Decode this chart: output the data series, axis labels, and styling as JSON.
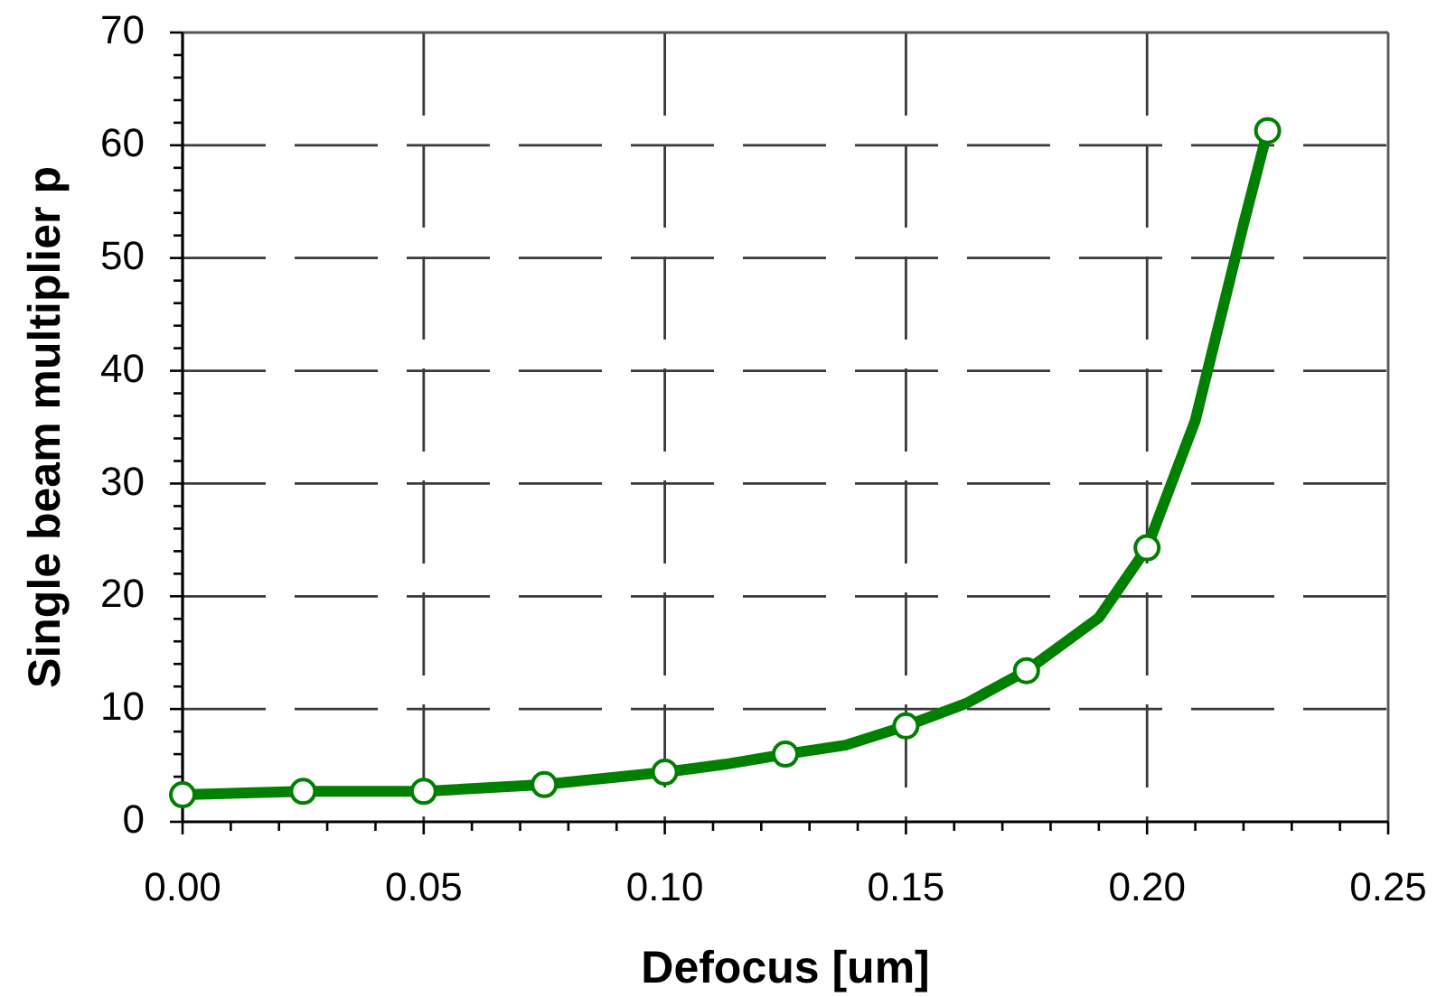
{
  "chart_data": {
    "type": "line",
    "xlabel": "Defocus [um]",
    "ylabel": "Single beam multiplier p",
    "xlim": [
      0,
      0.25
    ],
    "xticks": [
      {
        "value": 0,
        "label": "0.00"
      },
      {
        "value": 0.01,
        "label": null
      },
      {
        "value": 0.02,
        "label": null
      },
      {
        "value": 0.03,
        "label": null
      },
      {
        "value": 0.04,
        "label": null
      },
      {
        "value": 0.05,
        "label": "0.05"
      },
      {
        "value": 0.06,
        "label": null
      },
      {
        "value": 0.07,
        "label": null
      },
      {
        "value": 0.08,
        "label": null
      },
      {
        "value": 0.09,
        "label": null
      },
      {
        "value": 0.1,
        "label": "0.10"
      },
      {
        "value": 0.11,
        "label": null
      },
      {
        "value": 0.12,
        "label": null
      },
      {
        "value": 0.13,
        "label": null
      },
      {
        "value": 0.14,
        "label": null
      },
      {
        "value": 0.15,
        "label": "0.15"
      },
      {
        "value": 0.16,
        "label": null
      },
      {
        "value": 0.17,
        "label": null
      },
      {
        "value": 0.18,
        "label": null
      },
      {
        "value": 0.19,
        "label": null
      },
      {
        "value": 0.2,
        "label": "0.20"
      },
      {
        "value": 0.21,
        "label": null
      },
      {
        "value": 0.22,
        "label": null
      },
      {
        "value": 0.23,
        "label": null
      },
      {
        "value": 0.24,
        "label": null
      },
      {
        "value": 0.25,
        "label": "0.25"
      }
    ],
    "ylim": [
      0,
      70
    ],
    "yticks": [
      0,
      {
        "value": 2,
        "label": null
      },
      {
        "value": 4,
        "label": null
      },
      {
        "value": 6,
        "label": null
      },
      {
        "value": 8,
        "label": null
      },
      10,
      {
        "value": 12,
        "label": null
      },
      {
        "value": 14,
        "label": null
      },
      {
        "value": 16,
        "label": null
      },
      {
        "value": 18,
        "label": null
      },
      20,
      {
        "value": 22,
        "label": null
      },
      {
        "value": 24,
        "label": null
      },
      {
        "value": 26,
        "label": null
      },
      {
        "value": 28,
        "label": null
      },
      30,
      {
        "value": 32,
        "label": null
      },
      {
        "value": 34,
        "label": null
      },
      {
        "value": 36,
        "label": null
      },
      {
        "value": 38,
        "label": null
      },
      40,
      {
        "value": 42,
        "label": null
      },
      {
        "value": 44,
        "label": null
      },
      {
        "value": 46,
        "label": null
      },
      {
        "value": 48,
        "label": null
      },
      50,
      {
        "value": 52,
        "label": null
      },
      {
        "value": 54,
        "label": null
      },
      {
        "value": 56,
        "label": null
      },
      {
        "value": 58,
        "label": null
      },
      60,
      {
        "value": 62,
        "label": null
      },
      {
        "value": 64,
        "label": null
      },
      {
        "value": 66,
        "label": null
      },
      {
        "value": 68,
        "label": null
      },
      70
    ],
    "grid": true,
    "series": [
      {
        "color": "#008000",
        "marker": "none",
        "x": [
          0,
          0.025,
          0.05,
          0.075,
          0.1,
          0.1125,
          0.125,
          0.1375,
          0.15,
          0.1625,
          0.175,
          0.19,
          0.2,
          0.21,
          0.22,
          0.225
        ],
        "values": [
          2.4,
          2.7,
          2.7,
          3.3,
          4.4,
          5.1,
          6.0,
          6.8,
          8.5,
          10.5,
          13.4,
          18.1,
          24.3,
          35.6,
          53,
          61.3
        ]
      },
      {
        "type": "scatter",
        "color": "#008000",
        "marker": "circle",
        "x": [
          0,
          0.025,
          0.05,
          0.075,
          0.1,
          0.125,
          0.15,
          0.175,
          0.2,
          0.225
        ],
        "values": [
          2.4,
          2.7,
          2.7,
          3.3,
          4.4,
          6.0,
          8.5,
          13.4,
          24.3,
          61.3
        ]
      }
    ]
  }
}
